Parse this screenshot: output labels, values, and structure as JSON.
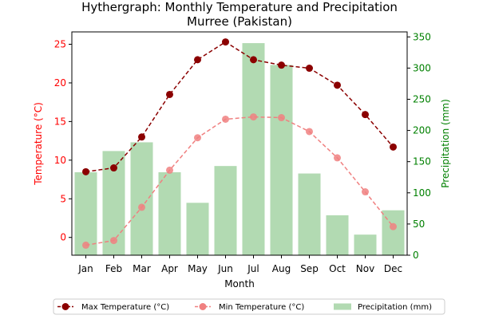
{
  "chart_data": {
    "type": "bar+line",
    "title": "Hythergraph: Monthly Temperature and Precipitation",
    "subtitle": "Murree (Pakistan)",
    "xlabel": "Month",
    "ylabel_left": "Temperature (°C)",
    "ylabel_right": "Precipitation (mm)",
    "categories": [
      "Jan",
      "Feb",
      "Mar",
      "Apr",
      "May",
      "Jun",
      "Jul",
      "Aug",
      "Sep",
      "Oct",
      "Nov",
      "Dec"
    ],
    "ylim_left": [
      -2.3,
      26.6
    ],
    "ylim_right": [
      0,
      358
    ],
    "yticks_left": [
      0,
      5,
      10,
      15,
      20,
      25
    ],
    "yticks_right": [
      0,
      50,
      100,
      150,
      200,
      250,
      300,
      350
    ],
    "series": [
      {
        "name": "Max Temperature (°C)",
        "axis": "left",
        "kind": "line",
        "color": "#8b0000",
        "dashed": true,
        "values": [
          8.5,
          9.0,
          13.0,
          18.5,
          23.0,
          25.3,
          23.0,
          22.3,
          21.9,
          19.7,
          15.9,
          11.7
        ]
      },
      {
        "name": "Min Temperature (°C)",
        "axis": "left",
        "kind": "line",
        "color": "#f08080",
        "dashed": true,
        "values": [
          -1.0,
          -0.4,
          3.9,
          8.7,
          12.9,
          15.3,
          15.6,
          15.5,
          13.7,
          10.3,
          5.9,
          1.4
        ]
      },
      {
        "name": "Precipitation (mm)",
        "axis": "right",
        "kind": "bar",
        "color": "#b2dab2",
        "values": [
          133,
          167,
          181,
          133,
          84,
          143,
          340,
          305,
          131,
          64,
          33,
          72
        ]
      }
    ],
    "legend_position": "bottom-center",
    "grid": false,
    "left_axis_color": "#ff0000",
    "right_axis_color": "#008000"
  }
}
